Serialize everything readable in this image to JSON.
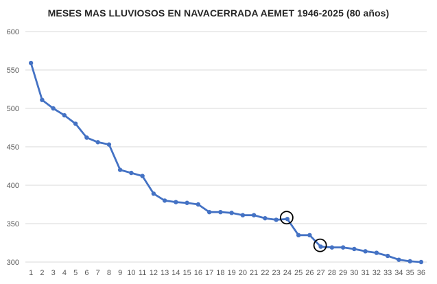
{
  "chart_data": {
    "type": "line",
    "title": "MESES MAS LLUVIOSOS EN NAVACERRADA AEMET 1946-2025 (80 años)",
    "xlabel": "",
    "ylabel": "",
    "x": [
      1,
      2,
      3,
      4,
      5,
      6,
      7,
      8,
      9,
      10,
      11,
      12,
      13,
      14,
      15,
      16,
      17,
      18,
      19,
      20,
      21,
      22,
      23,
      24,
      25,
      26,
      27,
      28,
      29,
      30,
      31,
      32,
      33,
      34,
      35,
      36
    ],
    "series": [
      {
        "values": [
          559,
          511,
          500,
          491,
          480,
          462,
          456,
          453,
          420,
          416,
          412,
          389,
          380,
          378,
          377,
          375,
          365,
          365,
          364,
          361,
          361,
          357,
          355,
          356,
          335,
          335,
          320,
          319,
          319,
          317,
          314,
          312,
          308,
          303,
          301,
          300
        ]
      }
    ],
    "ylim": [
      300,
      600
    ],
    "yticks": [
      300,
      350,
      400,
      450,
      500,
      550,
      600
    ],
    "grid": "horizontal",
    "legend": "none",
    "highlighted_x": [
      24,
      27
    ],
    "colors": {
      "line": "#4472C4",
      "grid": "#D9D9D9",
      "highlight_circle": "#000000"
    }
  }
}
